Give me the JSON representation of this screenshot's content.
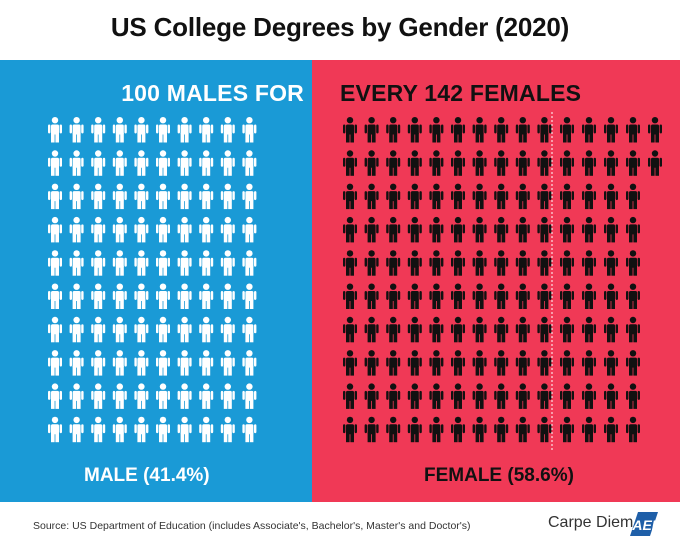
{
  "title": "US College Degrees by Gender (2020)",
  "colors": {
    "male": "#1a9ad6",
    "female": "#f03956",
    "male_icon": "#ffffff",
    "female_icon": "#111111"
  },
  "chart_data": {
    "type": "pictogram",
    "title": "US College Degrees by Gender (2020)",
    "headline_left": "100 MALES FOR",
    "headline_right": "EVERY 142 FEMALES",
    "series": [
      {
        "name": "Male",
        "count": 100,
        "percent_label": "MALE (41.4%)",
        "percent": 41.4
      },
      {
        "name": "Female",
        "count": 142,
        "percent_label": "FEMALE (58.6%)",
        "percent": 58.6
      }
    ],
    "reference_line_at": 100
  },
  "footer": {
    "source": "Source: US Department of Education (includes Associate's, Bachelor's, Master's and Doctor's)",
    "brand": "Carpe Diem",
    "logo_text": "AEI"
  }
}
